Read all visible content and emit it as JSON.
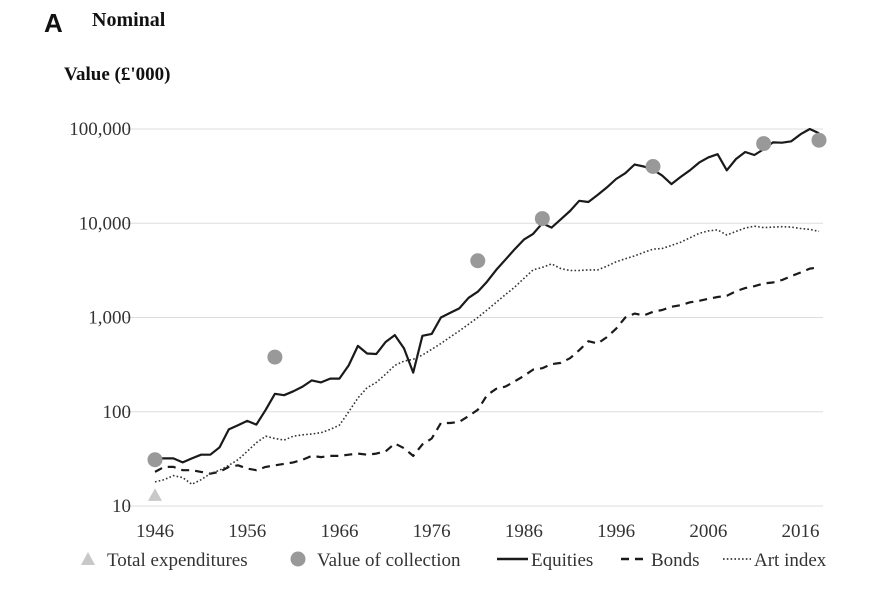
{
  "panel": {
    "letter": "A",
    "title": "Nominal"
  },
  "chart_data": {
    "type": "line",
    "title": "Nominal",
    "ylabel": "Value (£'000)",
    "xlabel": "",
    "y_scale": "log",
    "ylim": [
      10,
      100000
    ],
    "xlim": [
      1946,
      2018
    ],
    "y_ticks": [
      10,
      100,
      1000,
      10000,
      100000
    ],
    "y_tick_labels": [
      "10",
      "100",
      "1,000",
      "10,000",
      "100,000"
    ],
    "x_ticks": [
      1946,
      1956,
      1966,
      1976,
      1986,
      1996,
      2006,
      2016
    ],
    "x_tick_labels": [
      "1946",
      "1956",
      "1966",
      "1976",
      "1986",
      "1996",
      "2006",
      "2016"
    ],
    "grid": "horizontal",
    "legend_position": "bottom",
    "colors": {
      "equities": "#1a1a1a",
      "bonds": "#1a1a1a",
      "art": "#333333",
      "markers": "#999999",
      "triangle": "#c8c8c8",
      "grid": "#dddddd"
    },
    "series": [
      {
        "name": "Equities",
        "style": "solid",
        "x": [
          1946,
          1947,
          1948,
          1949,
          1950,
          1951,
          1952,
          1953,
          1954,
          1955,
          1956,
          1957,
          1958,
          1959,
          1960,
          1961,
          1962,
          1963,
          1964,
          1965,
          1966,
          1967,
          1968,
          1969,
          1970,
          1971,
          1972,
          1973,
          1974,
          1975,
          1976,
          1977,
          1978,
          1979,
          1980,
          1981,
          1982,
          1983,
          1984,
          1985,
          1986,
          1987,
          1988,
          1989,
          1990,
          1991,
          1992,
          1993,
          1994,
          1995,
          1996,
          1997,
          1998,
          1999,
          2000,
          2001,
          2002,
          2003,
          2004,
          2005,
          2006,
          2007,
          2008,
          2009,
          2010,
          2011,
          2012,
          2013,
          2014,
          2015,
          2016,
          2017,
          2018
        ],
        "values": [
          32,
          32,
          32,
          29,
          32,
          35,
          35,
          42,
          65,
          72,
          80,
          73,
          105,
          155,
          150,
          165,
          185,
          215,
          205,
          225,
          225,
          310,
          500,
          415,
          410,
          550,
          650,
          470,
          260,
          640,
          670,
          1000,
          1120,
          1250,
          1620,
          1880,
          2400,
          3200,
          4100,
          5300,
          6700,
          7700,
          10000,
          9000,
          11000,
          13500,
          17300,
          16800,
          20000,
          24000,
          29500,
          34000,
          42000,
          40000,
          37000,
          32000,
          26000,
          31000,
          36500,
          44000,
          50000,
          54000,
          36500,
          48000,
          57000,
          53000,
          61000,
          72000,
          71500,
          74000,
          88000,
          100000,
          90000
        ]
      },
      {
        "name": "Bonds",
        "style": "dashed",
        "x": [
          1946,
          1947,
          1948,
          1949,
          1950,
          1951,
          1952,
          1953,
          1954,
          1955,
          1956,
          1957,
          1958,
          1959,
          1960,
          1961,
          1962,
          1963,
          1964,
          1965,
          1966,
          1967,
          1968,
          1969,
          1970,
          1971,
          1972,
          1973,
          1974,
          1975,
          1976,
          1977,
          1978,
          1979,
          1980,
          1981,
          1982,
          1983,
          1984,
          1985,
          1986,
          1987,
          1988,
          1989,
          1990,
          1991,
          1992,
          1993,
          1994,
          1995,
          1996,
          1997,
          1998,
          1999,
          2000,
          2001,
          2002,
          2003,
          2004,
          2005,
          2006,
          2007,
          2008,
          2009,
          2010,
          2011,
          2012,
          2013,
          2014,
          2015,
          2016,
          2017,
          2018
        ],
        "values": [
          23,
          26,
          26,
          24,
          24,
          23,
          22,
          23,
          26,
          27,
          25,
          24,
          26,
          27,
          28,
          29,
          31,
          34,
          33,
          34,
          34,
          35,
          36,
          35,
          36,
          38,
          46,
          41,
          34,
          45,
          52,
          76,
          76,
          78,
          90,
          105,
          150,
          175,
          185,
          210,
          240,
          280,
          290,
          320,
          330,
          370,
          450,
          560,
          530,
          620,
          760,
          1000,
          1100,
          1050,
          1150,
          1200,
          1300,
          1350,
          1450,
          1500,
          1580,
          1650,
          1700,
          1900,
          2050,
          2150,
          2300,
          2350,
          2500,
          2750,
          3000,
          3300,
          3400
        ]
      },
      {
        "name": "Art index",
        "style": "dotted",
        "x": [
          1946,
          1947,
          1948,
          1949,
          1950,
          1951,
          1952,
          1953,
          1954,
          1955,
          1956,
          1957,
          1958,
          1959,
          1960,
          1961,
          1962,
          1963,
          1964,
          1965,
          1966,
          1967,
          1968,
          1969,
          1970,
          1971,
          1972,
          1973,
          1974,
          1975,
          1976,
          1977,
          1978,
          1979,
          1980,
          1981,
          1982,
          1983,
          1984,
          1985,
          1986,
          1987,
          1988,
          1989,
          1990,
          1991,
          1992,
          1993,
          1994,
          1995,
          1996,
          1997,
          1998,
          1999,
          2000,
          2001,
          2002,
          2003,
          2004,
          2005,
          2006,
          2007,
          2008,
          2009,
          2010,
          2011,
          2012,
          2013,
          2014,
          2015,
          2016,
          2017,
          2018
        ],
        "values": [
          18,
          19,
          21,
          20,
          17,
          19,
          22,
          24,
          27,
          31,
          38,
          47,
          55,
          52,
          50,
          55,
          57,
          58,
          60,
          65,
          72,
          100,
          140,
          180,
          205,
          250,
          310,
          345,
          360,
          400,
          460,
          530,
          620,
          720,
          850,
          1000,
          1200,
          1450,
          1750,
          2100,
          2600,
          3200,
          3400,
          3700,
          3300,
          3150,
          3150,
          3200,
          3200,
          3500,
          3900,
          4200,
          4500,
          4900,
          5300,
          5400,
          5800,
          6300,
          7000,
          7800,
          8300,
          8500,
          7500,
          8200,
          8900,
          9300,
          9000,
          9100,
          9200,
          9100,
          8800,
          8600,
          8200
        ]
      }
    ],
    "markers": [
      {
        "name": "Total expenditures",
        "shape": "triangle",
        "points": [
          {
            "x": 1946,
            "y": 13
          }
        ]
      },
      {
        "name": "Value of collection",
        "shape": "circle",
        "points": [
          {
            "x": 1946,
            "y": 31
          },
          {
            "x": 1959,
            "y": 380
          },
          {
            "x": 1981,
            "y": 4000
          },
          {
            "x": 1988,
            "y": 11200
          },
          {
            "x": 2000,
            "y": 40000
          },
          {
            "x": 2012,
            "y": 70000
          },
          {
            "x": 2018,
            "y": 76000
          }
        ]
      }
    ],
    "legend": [
      {
        "label": "Total expenditures",
        "symbol": "triangle"
      },
      {
        "label": "Value of collection",
        "symbol": "circle"
      },
      {
        "label": "Equities",
        "symbol": "solid"
      },
      {
        "label": "Bonds",
        "symbol": "dashed"
      },
      {
        "label": "Art index",
        "symbol": "dotted"
      }
    ]
  }
}
